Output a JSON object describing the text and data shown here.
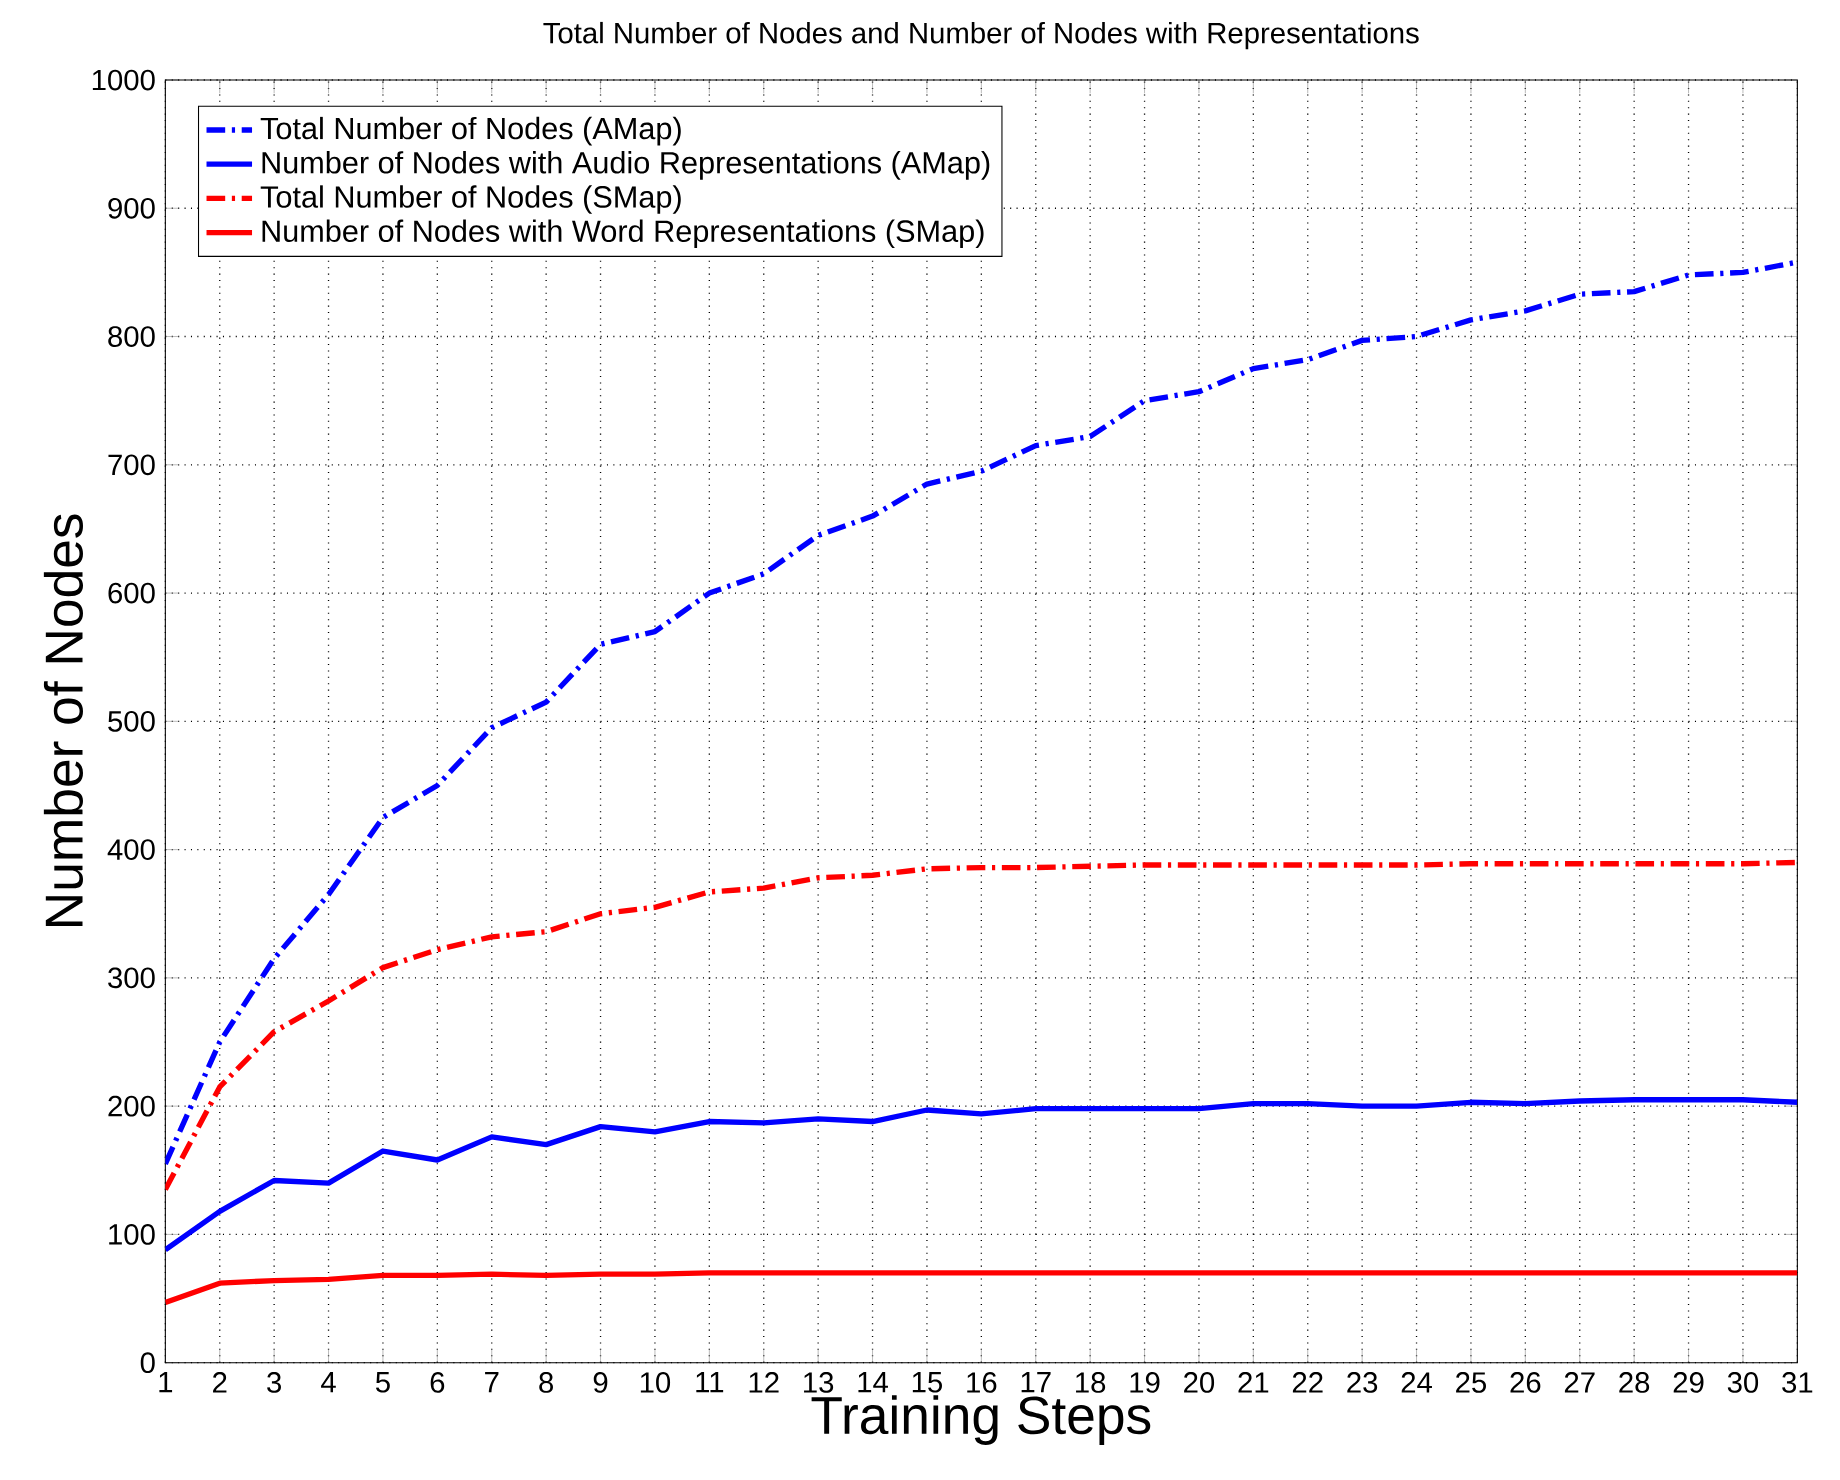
{
  "chart_data": {
    "type": "line",
    "title": "Total Number of Nodes and Number of Nodes with Representations",
    "xlabel": "Training Steps",
    "ylabel": "Number of Nodes",
    "x": [
      1,
      2,
      3,
      4,
      5,
      6,
      7,
      8,
      9,
      10,
      11,
      12,
      13,
      14,
      15,
      16,
      17,
      18,
      19,
      20,
      21,
      22,
      23,
      24,
      25,
      26,
      27,
      28,
      29,
      30,
      31
    ],
    "series": [
      {
        "name": "Total Number of Nodes (AMap)",
        "color": "#0000ff",
        "line_style": "dashed",
        "values": [
          155,
          250,
          315,
          365,
          425,
          450,
          495,
          515,
          560,
          570,
          600,
          615,
          645,
          660,
          685,
          695,
          715,
          722,
          750,
          757,
          775,
          782,
          797,
          800,
          813,
          820,
          833,
          835,
          848,
          850,
          858
        ]
      },
      {
        "name": "Number of Nodes with Audio Representations (AMap)",
        "color": "#0000ff",
        "line_style": "solid",
        "values": [
          88,
          118,
          142,
          140,
          165,
          158,
          176,
          170,
          184,
          180,
          188,
          187,
          190,
          188,
          197,
          194,
          198,
          198,
          198,
          198,
          202,
          202,
          200,
          200,
          203,
          202,
          204,
          205,
          205,
          205,
          203
        ]
      },
      {
        "name": "Total Number of Nodes (SMap)",
        "color": "#ff0000",
        "line_style": "dashed",
        "values": [
          135,
          215,
          258,
          282,
          308,
          322,
          332,
          336,
          350,
          355,
          367,
          370,
          378,
          380,
          385,
          386,
          386,
          387,
          388,
          388,
          388,
          388,
          388,
          388,
          389,
          389,
          389,
          389,
          389,
          389,
          390
        ]
      },
      {
        "name": "Number of Nodes with Word Representations (SMap)",
        "color": "#ff0000",
        "line_style": "solid",
        "values": [
          47,
          62,
          64,
          65,
          68,
          68,
          69,
          68,
          69,
          69,
          70,
          70,
          70,
          70,
          70,
          70,
          70,
          70,
          70,
          70,
          70,
          70,
          70,
          70,
          70,
          70,
          70,
          70,
          70,
          70,
          70
        ]
      }
    ],
    "xlim": [
      1,
      31
    ],
    "ylim": [
      0,
      1000
    ],
    "xticks": [
      1,
      2,
      3,
      4,
      5,
      6,
      7,
      8,
      9,
      10,
      11,
      12,
      13,
      14,
      15,
      16,
      17,
      18,
      19,
      20,
      21,
      22,
      23,
      24,
      25,
      26,
      27,
      28,
      29,
      30,
      31
    ],
    "yticks": [
      0,
      100,
      200,
      300,
      400,
      500,
      600,
      700,
      800,
      900,
      1000
    ],
    "grid": true,
    "legend": "top left",
    "marker": "none"
  }
}
